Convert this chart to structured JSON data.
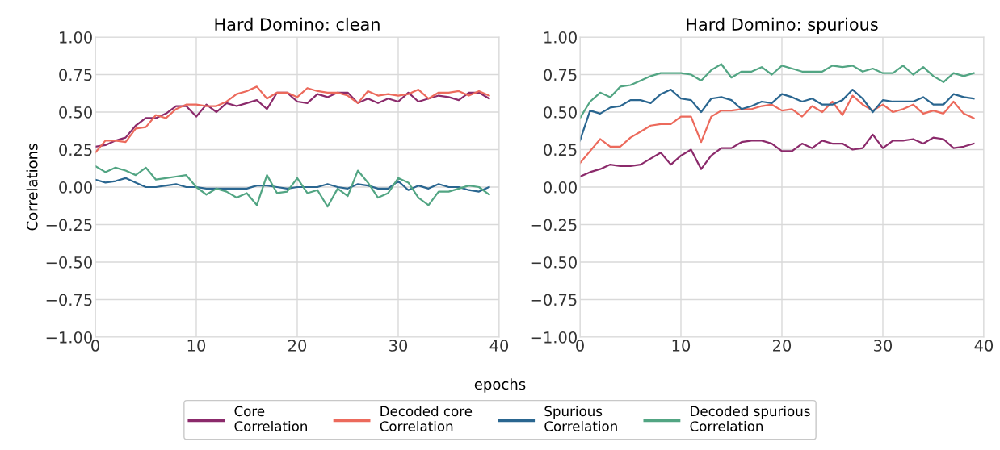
{
  "chart_data": [
    {
      "type": "line",
      "title": "Hard Domino: clean",
      "xlabel": "epochs",
      "ylabel": "Correlations",
      "legend": "bottom",
      "grid": true,
      "x": [
        0,
        1,
        2,
        3,
        4,
        5,
        6,
        7,
        8,
        9,
        10,
        11,
        12,
        13,
        14,
        15,
        16,
        17,
        18,
        19,
        20,
        21,
        22,
        23,
        24,
        25,
        26,
        27,
        28,
        29,
        30,
        31,
        32,
        33,
        34,
        35,
        36,
        37,
        38,
        39
      ],
      "xlim": [
        0,
        40
      ],
      "xticks": [
        0,
        10,
        20,
        30,
        40
      ],
      "ylim": [
        -1,
        1
      ],
      "yticks": [
        {
          "value": -1,
          "label": "−1.00"
        },
        {
          "value": -0.75,
          "label": "−0.75"
        },
        {
          "value": -0.5,
          "label": "−0.50"
        },
        {
          "value": -0.25,
          "label": "−0.25"
        },
        {
          "value": 0,
          "label": "0.00"
        },
        {
          "value": 0.25,
          "label": "0.25"
        },
        {
          "value": 0.5,
          "label": "0.50"
        },
        {
          "value": 0.75,
          "label": "0.75"
        },
        {
          "value": 1,
          "label": "1.00"
        }
      ],
      "series": [
        {
          "name": "Core\nCorrelation",
          "color": "#8b2a6b",
          "values": [
            0.27,
            0.28,
            0.31,
            0.33,
            0.41,
            0.46,
            0.46,
            0.49,
            0.54,
            0.54,
            0.47,
            0.55,
            0.5,
            0.56,
            0.54,
            0.56,
            0.58,
            0.52,
            0.63,
            0.63,
            0.57,
            0.56,
            0.62,
            0.6,
            0.63,
            0.63,
            0.56,
            0.59,
            0.56,
            0.59,
            0.57,
            0.63,
            0.57,
            0.59,
            0.61,
            0.6,
            0.58,
            0.63,
            0.63,
            0.59
          ]
        },
        {
          "name": "Decoded core\nCorrelation",
          "color": "#ec6a5c",
          "values": [
            0.23,
            0.31,
            0.31,
            0.3,
            0.39,
            0.4,
            0.48,
            0.46,
            0.52,
            0.55,
            0.55,
            0.54,
            0.54,
            0.57,
            0.62,
            0.64,
            0.67,
            0.59,
            0.63,
            0.63,
            0.6,
            0.66,
            0.64,
            0.63,
            0.63,
            0.61,
            0.56,
            0.64,
            0.61,
            0.62,
            0.61,
            0.62,
            0.65,
            0.59,
            0.63,
            0.63,
            0.64,
            0.61,
            0.64,
            0.61
          ]
        },
        {
          "name": "Spurious\nCorrelation",
          "color": "#2a6690",
          "values": [
            0.05,
            0.03,
            0.04,
            0.06,
            0.03,
            0.0,
            0.0,
            0.01,
            0.02,
            0.0,
            0.0,
            -0.01,
            -0.01,
            -0.01,
            -0.01,
            -0.01,
            0.01,
            0.01,
            0.0,
            -0.01,
            0.0,
            0.0,
            0.0,
            0.02,
            0.0,
            -0.01,
            0.02,
            0.01,
            -0.01,
            -0.01,
            0.04,
            -0.02,
            0.01,
            -0.01,
            0.02,
            0.0,
            0.0,
            -0.02,
            -0.03,
            0.0
          ]
        },
        {
          "name": "Decoded spurious\nCorrelation",
          "color": "#52a583",
          "values": [
            0.14,
            0.1,
            0.13,
            0.11,
            0.08,
            0.13,
            0.05,
            0.06,
            0.07,
            0.08,
            0.0,
            -0.05,
            -0.01,
            -0.03,
            -0.07,
            -0.04,
            -0.12,
            0.08,
            -0.04,
            -0.03,
            0.06,
            -0.04,
            -0.02,
            -0.13,
            -0.01,
            -0.06,
            0.11,
            0.03,
            -0.07,
            -0.04,
            0.06,
            0.03,
            -0.07,
            -0.12,
            -0.03,
            -0.03,
            -0.01,
            0.01,
            0.0,
            -0.05
          ]
        }
      ]
    },
    {
      "type": "line",
      "title": "Hard Domino: spurious",
      "grid": true,
      "x": [
        0,
        1,
        2,
        3,
        4,
        5,
        6,
        7,
        8,
        9,
        10,
        11,
        12,
        13,
        14,
        15,
        16,
        17,
        18,
        19,
        20,
        21,
        22,
        23,
        24,
        25,
        26,
        27,
        28,
        29,
        30,
        31,
        32,
        33,
        34,
        35,
        36,
        37,
        38,
        39
      ],
      "xlim": [
        0,
        40
      ],
      "xticks": [
        0,
        10,
        20,
        30,
        40
      ],
      "ylim": [
        -1,
        1
      ],
      "yticks": [
        {
          "value": -1,
          "label": "−1.00"
        },
        {
          "value": -0.75,
          "label": "−0.75"
        },
        {
          "value": -0.5,
          "label": "−0.50"
        },
        {
          "value": -0.25,
          "label": "−0.25"
        },
        {
          "value": 0,
          "label": "0.00"
        },
        {
          "value": 0.25,
          "label": "0.25"
        },
        {
          "value": 0.5,
          "label": "0.50"
        },
        {
          "value": 0.75,
          "label": "0.75"
        },
        {
          "value": 1,
          "label": "1.00"
        }
      ],
      "series": [
        {
          "color": "#8b2a6b",
          "values": [
            0.07,
            0.1,
            0.12,
            0.15,
            0.14,
            0.14,
            0.15,
            0.19,
            0.23,
            0.15,
            0.21,
            0.25,
            0.12,
            0.21,
            0.26,
            0.26,
            0.3,
            0.31,
            0.31,
            0.29,
            0.24,
            0.24,
            0.29,
            0.26,
            0.31,
            0.29,
            0.29,
            0.25,
            0.26,
            0.35,
            0.26,
            0.31,
            0.31,
            0.32,
            0.29,
            0.33,
            0.32,
            0.26,
            0.27,
            0.29
          ]
        },
        {
          "color": "#ec6a5c",
          "values": [
            0.16,
            0.24,
            0.32,
            0.27,
            0.27,
            0.33,
            0.37,
            0.41,
            0.42,
            0.42,
            0.47,
            0.47,
            0.3,
            0.47,
            0.51,
            0.51,
            0.52,
            0.52,
            0.54,
            0.55,
            0.51,
            0.52,
            0.47,
            0.54,
            0.5,
            0.57,
            0.48,
            0.61,
            0.55,
            0.51,
            0.55,
            0.5,
            0.52,
            0.55,
            0.49,
            0.51,
            0.49,
            0.57,
            0.49,
            0.46
          ]
        },
        {
          "color": "#2a6690",
          "values": [
            0.31,
            0.51,
            0.49,
            0.53,
            0.54,
            0.58,
            0.58,
            0.56,
            0.62,
            0.65,
            0.59,
            0.58,
            0.5,
            0.59,
            0.6,
            0.58,
            0.52,
            0.54,
            0.57,
            0.56,
            0.62,
            0.6,
            0.57,
            0.59,
            0.55,
            0.55,
            0.58,
            0.65,
            0.59,
            0.5,
            0.58,
            0.57,
            0.57,
            0.57,
            0.6,
            0.55,
            0.55,
            0.62,
            0.6,
            0.59
          ]
        },
        {
          "color": "#52a583",
          "values": [
            0.46,
            0.57,
            0.63,
            0.6,
            0.67,
            0.68,
            0.71,
            0.74,
            0.76,
            0.76,
            0.76,
            0.75,
            0.71,
            0.78,
            0.82,
            0.73,
            0.77,
            0.77,
            0.8,
            0.75,
            0.81,
            0.79,
            0.77,
            0.77,
            0.77,
            0.81,
            0.8,
            0.81,
            0.77,
            0.79,
            0.76,
            0.76,
            0.81,
            0.75,
            0.8,
            0.74,
            0.7,
            0.76,
            0.74,
            0.76
          ]
        }
      ]
    }
  ]
}
